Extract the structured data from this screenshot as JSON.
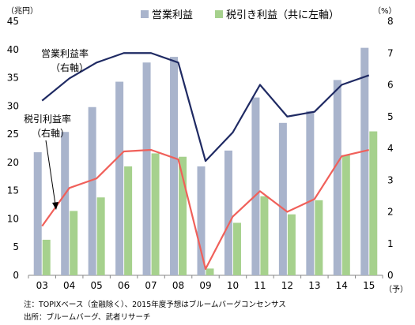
{
  "chart_data": {
    "type": "bar",
    "categories": [
      "03",
      "04",
      "05",
      "06",
      "07",
      "08",
      "09",
      "10",
      "11",
      "12",
      "13",
      "14",
      "15"
    ],
    "y_left_unit": "（兆円）",
    "y_right_unit": "（%）",
    "x_unit": "（予）",
    "ylim_left": [
      0,
      45
    ],
    "ylim_right": [
      0,
      8
    ],
    "yticks_left": [
      "0",
      "5",
      "10",
      "15",
      "20",
      "25",
      "30",
      "35",
      "40",
      "45"
    ],
    "yticks_right": [
      "0",
      "1",
      "2",
      "3",
      "4",
      "5",
      "6",
      "7",
      "8"
    ],
    "series": [
      {
        "name": "営業利益",
        "type": "bar",
        "axis": "left",
        "color": "#a9b4cc",
        "values": [
          21.8,
          25.4,
          29.8,
          34.3,
          37.7,
          38.7,
          19.3,
          22.1,
          31.5,
          27.0,
          29.1,
          34.6,
          40.3
        ]
      },
      {
        "name": "税引き利益（共に左軸）",
        "type": "bar",
        "axis": "left",
        "color": "#a6d18d",
        "values": [
          6.3,
          11.4,
          13.8,
          19.3,
          21.6,
          21.0,
          1.2,
          9.3,
          14.0,
          10.8,
          13.3,
          21.3,
          25.5
        ]
      },
      {
        "name": "営業利益率",
        "type": "line",
        "axis": "right",
        "color": "#1f2a63",
        "values": [
          5.5,
          6.2,
          6.7,
          7.0,
          7.0,
          6.7,
          3.6,
          4.5,
          6.0,
          5.0,
          5.15,
          6.0,
          6.3
        ]
      },
      {
        "name": "税引利益率",
        "type": "line",
        "axis": "right",
        "color": "#f0605a",
        "values": [
          1.55,
          2.75,
          3.05,
          3.9,
          3.95,
          3.65,
          0.2,
          1.85,
          2.65,
          2.0,
          2.4,
          3.75,
          3.95
        ]
      }
    ],
    "legend": {
      "position": "top",
      "entries": [
        "営業利益",
        "税引き利益（共に左軸）"
      ]
    },
    "annotations": [
      {
        "line1": "営業利益率",
        "line2": "（右軸）"
      },
      {
        "line1": "税引利益率",
        "line2": "（右軸）"
      }
    ],
    "grid": false
  },
  "notes": {
    "note": "注：TOPIXベース（金融除く）、2015年度予想はブルームバーグコンセンサス",
    "source": "出所：ブルームバーグ、武者リサーチ"
  }
}
